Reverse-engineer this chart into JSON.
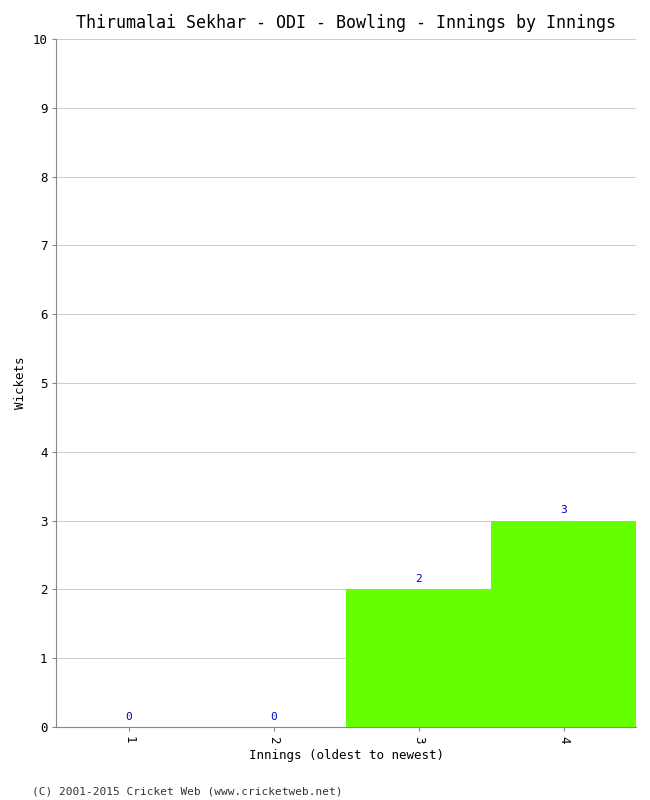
{
  "title": "Thirumalai Sekhar - ODI - Bowling - Innings by Innings",
  "xlabel": "Innings (oldest to newest)",
  "ylabel": "Wickets",
  "categories": [
    1,
    2,
    3,
    4
  ],
  "values": [
    0,
    0,
    2,
    3
  ],
  "bar_color": "#66ff00",
  "label_color": "#0000cc",
  "ylim": [
    0,
    10
  ],
  "yticks": [
    0,
    1,
    2,
    3,
    4,
    5,
    6,
    7,
    8,
    9,
    10
  ],
  "xticks": [
    1,
    2,
    3,
    4
  ],
  "footer": "(C) 2001-2015 Cricket Web (www.cricketweb.net)",
  "background_color": "#ffffff",
  "grid_color": "#cccccc",
  "title_fontsize": 12,
  "axis_label_fontsize": 9,
  "tick_fontsize": 9,
  "bar_label_fontsize": 8,
  "footer_fontsize": 8
}
